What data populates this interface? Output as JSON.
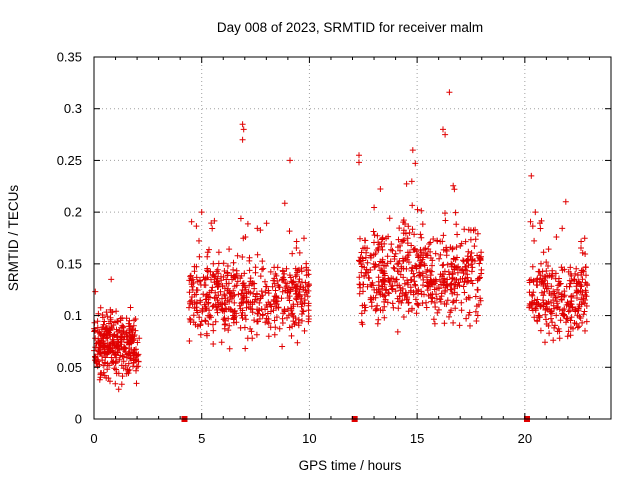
{
  "chart_data": {
    "type": "scatter",
    "title": "Day 008 of 2023, SRMTID for receiver malm",
    "xlabel": "GPS time / hours",
    "ylabel": "SRMTID / TECUs",
    "xlim": [
      0,
      24
    ],
    "ylim": [
      0,
      0.35
    ],
    "x_ticks": [
      0,
      5,
      10,
      15,
      20
    ],
    "x_tick_labels": [
      "0",
      "5",
      "10",
      "15",
      "20"
    ],
    "y_ticks": [
      0,
      0.05,
      0.1,
      0.15,
      0.2,
      0.25,
      0.3,
      0.35
    ],
    "y_tick_labels": [
      "0",
      "0.05",
      "0.1",
      "0.15",
      "0.2",
      "0.25",
      "0.3",
      "0.35"
    ],
    "grid": true,
    "marker": "+",
    "color": "#e00000",
    "clusters": [
      {
        "x_range": [
          0.0,
          2.1
        ],
        "y_center": 0.07,
        "y_spread": 0.025,
        "count": 320
      },
      {
        "x_range": [
          4.4,
          10.0
        ],
        "y_center": 0.12,
        "y_spread": 0.035,
        "count": 520
      },
      {
        "x_range": [
          12.3,
          18.0
        ],
        "y_center": 0.14,
        "y_spread": 0.04,
        "count": 560
      },
      {
        "x_range": [
          20.2,
          22.9
        ],
        "y_center": 0.12,
        "y_spread": 0.035,
        "count": 270
      }
    ],
    "notable_points": [
      {
        "x": 0.8,
        "y": 0.135
      },
      {
        "x": 6.9,
        "y": 0.285
      },
      {
        "x": 6.95,
        "y": 0.28
      },
      {
        "x": 6.9,
        "y": 0.27
      },
      {
        "x": 9.1,
        "y": 0.25
      },
      {
        "x": 12.3,
        "y": 0.255
      },
      {
        "x": 14.8,
        "y": 0.26
      },
      {
        "x": 16.5,
        "y": 0.316
      },
      {
        "x": 16.3,
        "y": 0.275
      },
      {
        "x": 16.2,
        "y": 0.28
      },
      {
        "x": 20.3,
        "y": 0.235
      },
      {
        "x": 21.9,
        "y": 0.21
      }
    ],
    "gap_markers_x": [
      4.2,
      12.1,
      20.1
    ]
  }
}
